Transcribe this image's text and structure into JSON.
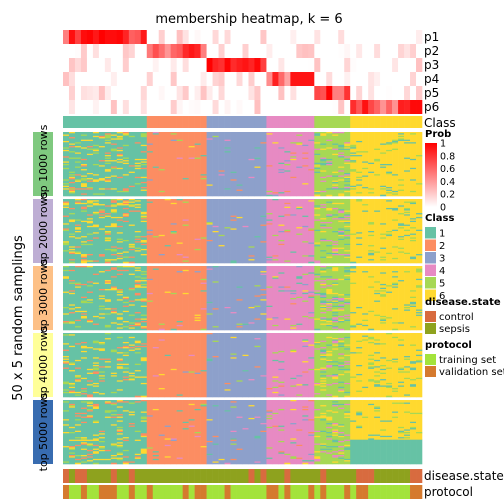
{
  "chart_data": {
    "type": "heatmap",
    "title": "membership heatmap, k = 6",
    "ylabel": "50 x 5 random samplings",
    "n_samples": 60,
    "prob_rows": [
      "p1",
      "p2",
      "p3",
      "p4",
      "p5",
      "p6"
    ],
    "class_row_label": "Class",
    "row_groups": [
      "top 1000 rows",
      "top 2000 rows",
      "top 3000 rows",
      "top 4000 rows",
      "top 5000 rows"
    ],
    "row_group_colors": [
      "#7fc97f",
      "#beaed4",
      "#fdc086",
      "#ffff99",
      "#386cb0"
    ],
    "clusters": [
      {
        "class": "1",
        "count": 14
      },
      {
        "class": "2",
        "count": 10
      },
      {
        "class": "3",
        "count": 10
      },
      {
        "class": "4",
        "count": 8
      },
      {
        "class": "5",
        "count": 6
      },
      {
        "class": "6",
        "count": 12
      }
    ],
    "annotation_rows": [
      "disease.state",
      "protocol"
    ],
    "legends": {
      "prob": {
        "title": "Prob",
        "ticks": [
          "1",
          "0.8",
          "0.6",
          "0.4",
          "0.2",
          "0"
        ],
        "colors": [
          "#ff0000",
          "#ffffff"
        ]
      },
      "class": {
        "title": "Class",
        "items": [
          {
            "label": "1",
            "color": "#66c2a5"
          },
          {
            "label": "2",
            "color": "#fc8d62"
          },
          {
            "label": "3",
            "color": "#8da0cb"
          },
          {
            "label": "4",
            "color": "#e78ac3"
          },
          {
            "label": "5",
            "color": "#a6d854"
          },
          {
            "label": "6",
            "color": "#ffd92f"
          }
        ]
      },
      "disease_state": {
        "title": "disease.state",
        "items": [
          {
            "label": "control",
            "color": "#d86b3f"
          },
          {
            "label": "sepsis",
            "color": "#8ea21e"
          }
        ]
      },
      "protocol": {
        "title": "protocol",
        "items": [
          {
            "label": "training set",
            "color": "#a3e33b"
          },
          {
            "label": "validation set",
            "color": "#d57a2e"
          }
        ]
      }
    }
  }
}
